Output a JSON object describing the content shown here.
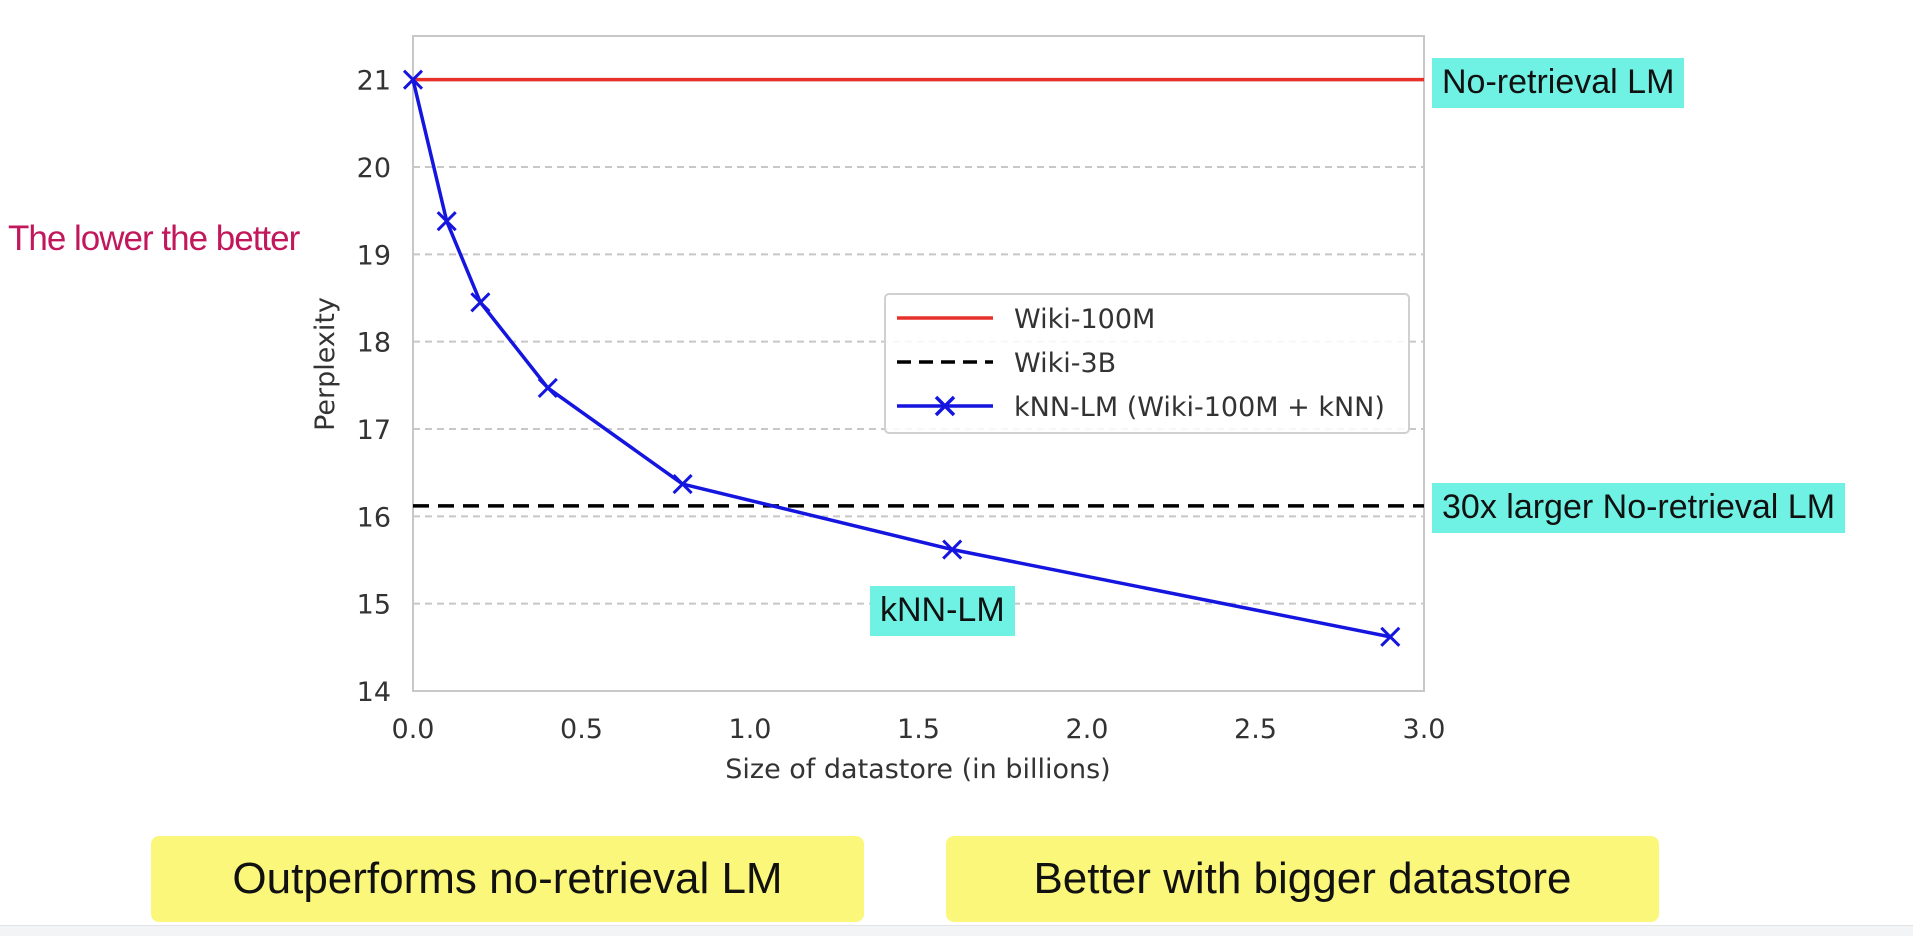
{
  "chart_data": {
    "type": "line",
    "xlabel": "Size of datastore (in billions)",
    "ylabel": "Perplexity",
    "xlim": [
      0.0,
      3.0
    ],
    "ylim": [
      14,
      21.5
    ],
    "xticks": [
      "0.0",
      "0.5",
      "1.0",
      "1.5",
      "2.0",
      "2.5",
      "3.0"
    ],
    "yticks": [
      "14",
      "15",
      "16",
      "17",
      "18",
      "19",
      "20",
      "21"
    ],
    "grid": "horizontal dashed",
    "legend_position": "center-right",
    "series": [
      {
        "name": "Wiki-100M",
        "style": "solid",
        "color": "#e8302a",
        "marker": "none",
        "x": [
          0.0,
          3.0
        ],
        "y": [
          21.0,
          21.0
        ]
      },
      {
        "name": "Wiki-3B",
        "style": "dashed",
        "color": "#000000",
        "marker": "none",
        "x": [
          0.0,
          3.0
        ],
        "y": [
          16.12,
          16.12
        ]
      },
      {
        "name": "kNN-LM (Wiki-100M + kNN)",
        "style": "solid",
        "color": "#1515e0",
        "marker": "x",
        "x": [
          0.0,
          0.1,
          0.2,
          0.4,
          0.8,
          1.6,
          2.9
        ],
        "y": [
          21.0,
          19.38,
          18.45,
          17.47,
          16.37,
          15.62,
          14.62
        ]
      }
    ]
  },
  "annotations": {
    "no_retrieval": "No-retrieval LM",
    "larger_no_retrieval": "30x larger No-retrieval LM",
    "knn_lm": "kNN-LM",
    "lower_better": "The lower the better",
    "outperforms": "Outperforms no-retrieval LM",
    "bigger_datastore": "Better with bigger datastore"
  }
}
